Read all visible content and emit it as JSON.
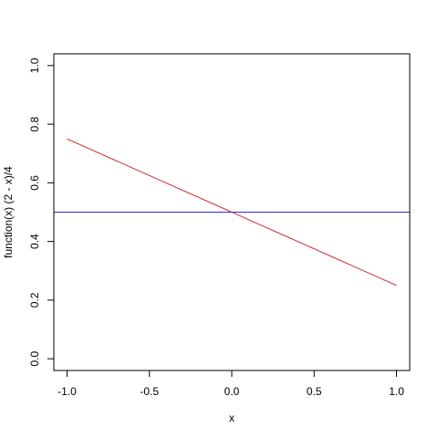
{
  "chart_data": {
    "type": "line",
    "title": "",
    "xlabel": "x",
    "ylabel": "function(x) (2 - x)/4",
    "xlim": [
      -1.08,
      1.08
    ],
    "ylim": [
      -0.04,
      1.04
    ],
    "x_ticks": [
      -1.0,
      -0.5,
      0.0,
      0.5,
      1.0
    ],
    "x_tick_labels": [
      "-1.0",
      "-0.5",
      "0.0",
      "0.5",
      "1.0"
    ],
    "y_ticks": [
      0.0,
      0.2,
      0.4,
      0.6,
      0.8,
      1.0
    ],
    "y_tick_labels": [
      "0.0",
      "0.2",
      "0.4",
      "0.6",
      "0.8",
      "1.0"
    ],
    "grid": false,
    "legend": "none",
    "series": [
      {
        "color": "#cd2626",
        "x": [
          -1.0,
          1.0
        ],
        "y": [
          0.75,
          0.25
        ]
      }
    ],
    "hlines": [
      {
        "y": 0.5,
        "color": "#2e2ed6"
      }
    ]
  }
}
